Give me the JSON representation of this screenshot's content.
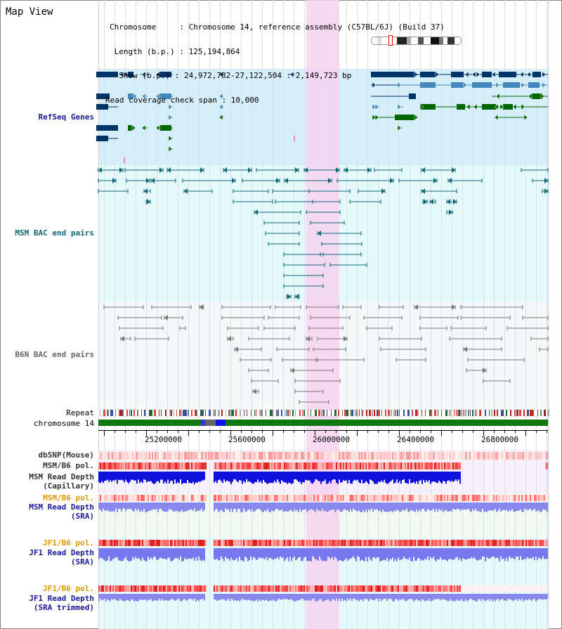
{
  "window_title": "Map View",
  "info": {
    "chromosome": "Chromosome     : Chromosome 14, reference assembly (C57BL/6J) (Build 37)",
    "length": " Length (b.p.) : 125,194,864",
    "show": "  Show (b.p.) : 24,972,782-27,122,504 : 2,149,723 bp",
    "coverage": "Read coverage check span : 10,000"
  },
  "tracks": {
    "refseq": "RefSeq Genes",
    "msm_bac": "MSM BAC end pairs",
    "b6n_bac": "B6N BAC end pairs",
    "repeat": "Repeat",
    "chromosome": "chromosome 14",
    "dbsnp": "dbSNP(Mouse)",
    "msm_b6_pol": "MSM/B6 pol.",
    "msm_depth_cap_1": "MSM Read Depth",
    "msm_depth_cap_2": "(Capillary)",
    "msm_b6_pol_sra": "MSM/B6 pol.",
    "msm_depth_sra_1": "MSM Read Depth",
    "msm_depth_sra_2": "(SRA)",
    "jf1_b6_pol": "JF1/B6 pol.",
    "jf1_depth_sra_1": "JF1 Read Depth",
    "jf1_depth_sra_2": "(SRA)",
    "jf1_b6_pol_trim": "JF1/B6 pol.",
    "jf1_depth_trim_1": "JF1 Read Depth",
    "jf1_depth_trim_2": "(SRA trimmed)"
  },
  "axis": {
    "range": [
      24972782,
      27122504
    ],
    "ticks": [
      "25200000",
      "25600000",
      "26000000",
      "26400000",
      "26800000"
    ]
  },
  "colors": {
    "refseq_bg": "#d4eefa",
    "msm_bg": "#e4fafa",
    "b6n_bg": "#f4f8f8",
    "highlight": "#f6d2ee",
    "label_blue": "#1a1a99",
    "label_teal": "#116677",
    "label_gray": "#666666",
    "label_orange": "#dd9900",
    "label_dark": "#333333",
    "chromosome_bar": "#117711"
  }
}
